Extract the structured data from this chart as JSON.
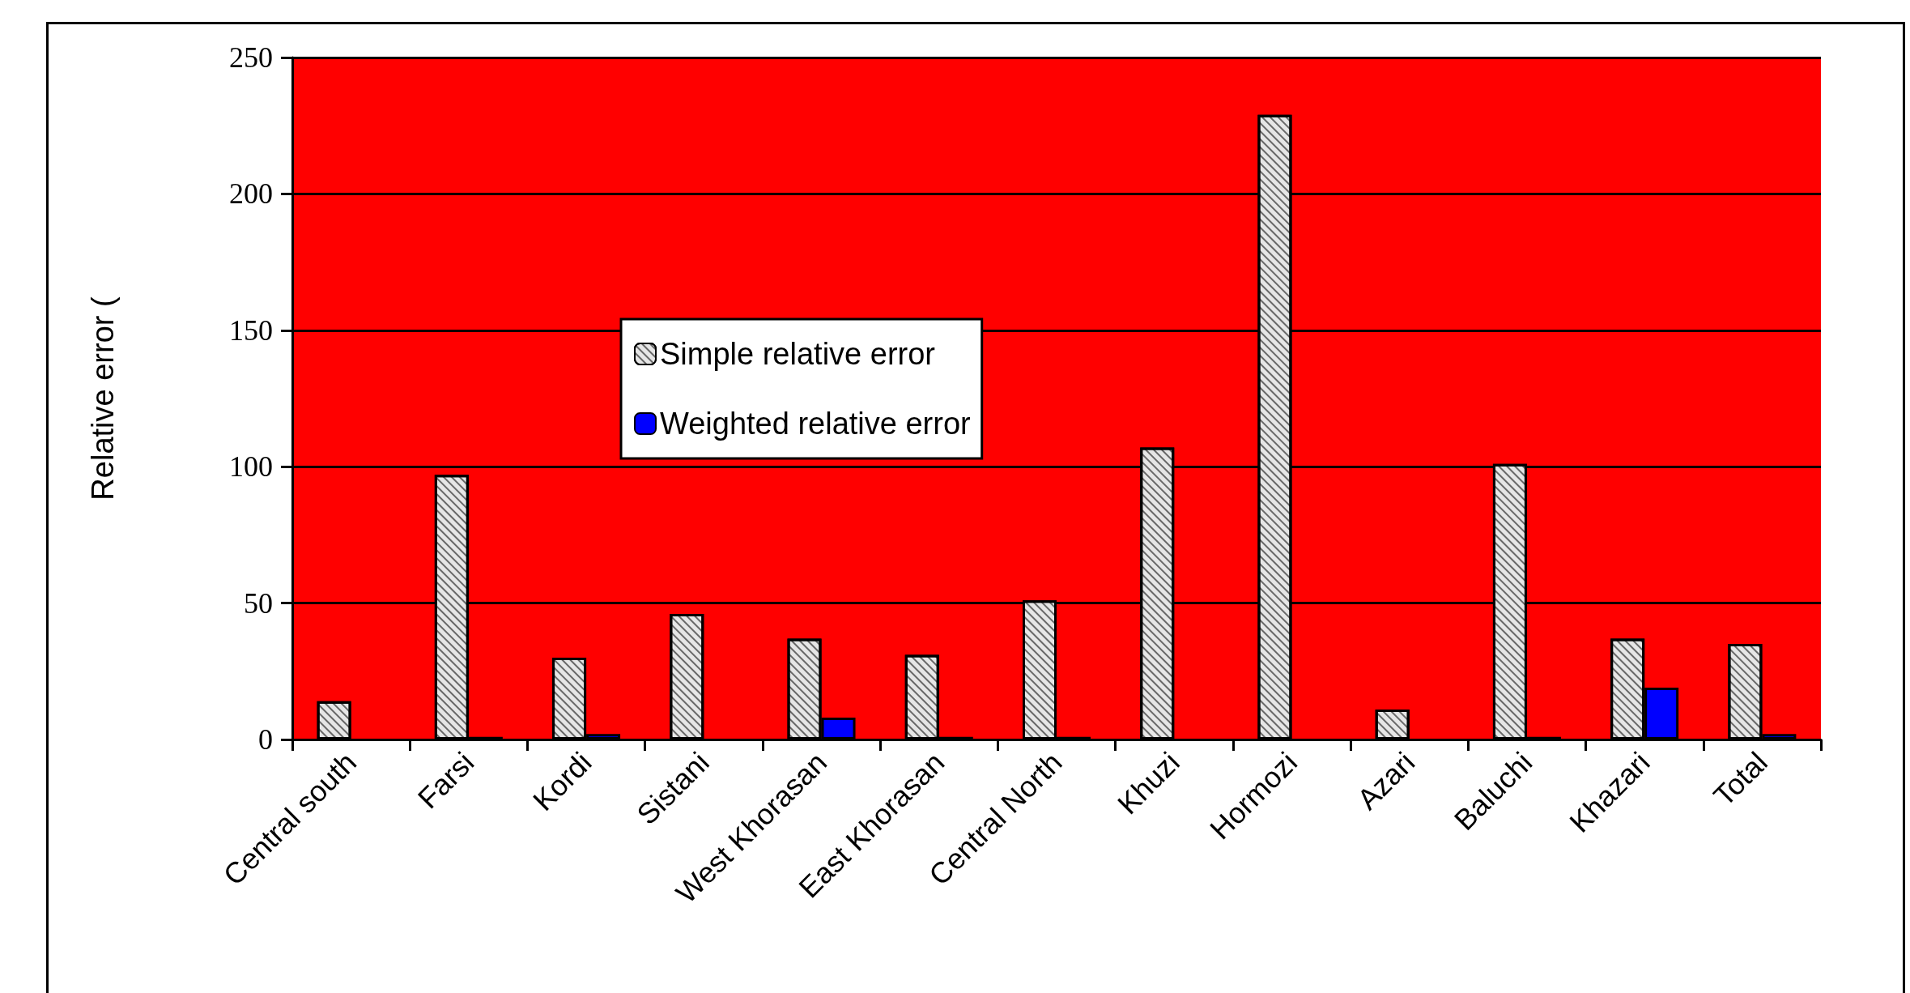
{
  "chart_data": {
    "type": "bar",
    "ylabel": "Relative error (",
    "categories": [
      "Central south",
      "Farsi",
      "Kordi",
      "Sistani",
      "West Khorasan",
      "East Khorasan",
      "Central North",
      "Khuzi",
      "Hormozi",
      "Azari",
      "Baluchi",
      "Khazari",
      "Total"
    ],
    "series": [
      {
        "name": "Simple relative error",
        "color": "#e6e6e6",
        "values": [
          14,
          97,
          30,
          46,
          37,
          31,
          51,
          107,
          229,
          11,
          101,
          37,
          35
        ]
      },
      {
        "name": "Weighted relative error",
        "color": "#0000ff",
        "values": [
          null,
          1,
          2,
          null,
          8,
          1,
          1,
          null,
          null,
          null,
          1,
          19,
          2
        ]
      }
    ],
    "ylim": [
      0,
      250
    ],
    "yticks": [
      0,
      50,
      100,
      150,
      200,
      250
    ],
    "grid": "y",
    "legend": "center left"
  }
}
